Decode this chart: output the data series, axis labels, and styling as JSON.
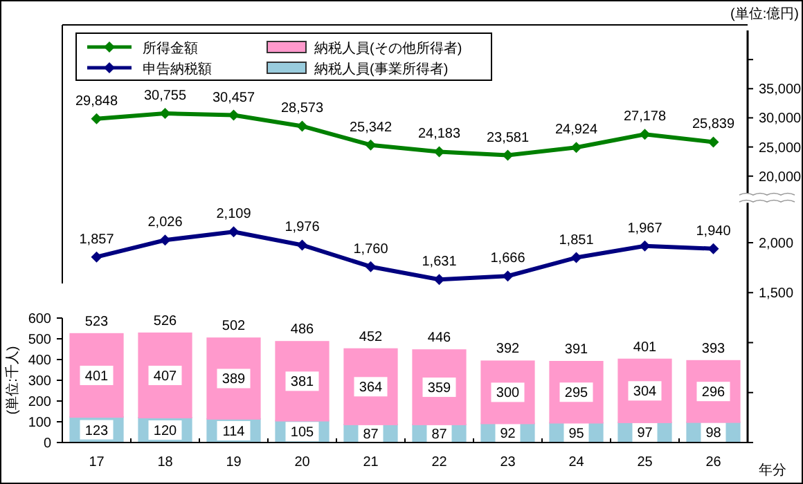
{
  "chart_data": [
    {
      "type": "line",
      "y2label": "(単位:億円)",
      "categories": [
        "17",
        "18",
        "19",
        "20",
        "21",
        "22",
        "23",
        "24",
        "25",
        "26"
      ],
      "tick_labels": "y",
      "series": [
        {
          "name": "所得金額",
          "color": "#008000",
          "axis": "y2",
          "values": [
            29848,
            30755,
            30457,
            28573,
            25342,
            24183,
            23581,
            24924,
            27178,
            25839
          ],
          "value_labels": [
            "29,848",
            "30,755",
            "30,457",
            "28,573",
            "25,342",
            "24,183",
            "23,581",
            "24,924",
            "27,178",
            "25,839"
          ]
        }
      ],
      "y2lim": [
        17000,
        45000
      ],
      "y2ticks": [
        {
          "value": 20000,
          "label": "20,000"
        },
        {
          "value": 25000,
          "label": "25,000"
        },
        {
          "value": 30000,
          "label": "30,000"
        },
        {
          "value": 35000,
          "label": "35,000"
        },
        {
          "value": 40000,
          "label": null
        }
      ],
      "marker": "diamond",
      "legend": "top left"
    },
    {
      "type": "line",
      "categories": [
        "17",
        "18",
        "19",
        "20",
        "21",
        "22",
        "23",
        "24",
        "25",
        "26"
      ],
      "tick_labels": "y",
      "series": [
        {
          "name": "申告納税額",
          "color": "#000080",
          "axis": "y2",
          "values": [
            1857,
            2026,
            2109,
            1976,
            1760,
            1631,
            1666,
            1851,
            1967,
            1940
          ],
          "value_labels": [
            "1,857",
            "2,026",
            "2,109",
            "1,976",
            "1,760",
            "1,631",
            "1,666",
            "1,851",
            "1,967",
            "1,940"
          ]
        }
      ],
      "y2lim": [
        0,
        2400
      ],
      "y2ticks": [
        {
          "value": 0,
          "label": null
        },
        {
          "value": 500,
          "label": null
        },
        {
          "value": 1000,
          "label": null
        },
        {
          "value": 1500,
          "label": "1,500"
        },
        {
          "value": 2000,
          "label": "2,000"
        }
      ],
      "marker": "diamond",
      "legend": "top left"
    },
    {
      "type": "bar",
      "stacked": true,
      "ylabel": "(単位:千人)",
      "xlabel": "年分",
      "categories": [
        "17",
        "18",
        "19",
        "20",
        "21",
        "22",
        "23",
        "24",
        "25",
        "26"
      ],
      "series": [
        {
          "name": "納税人員(事業所得者)",
          "color": "#99ccdd",
          "values": [
            123,
            120,
            114,
            105,
            87,
            87,
            92,
            95,
            97,
            98
          ]
        },
        {
          "name": "納税人員(その他所得者)",
          "color": "#ff99cc",
          "values": [
            401,
            407,
            389,
            381,
            364,
            359,
            300,
            295,
            304,
            296
          ]
        }
      ],
      "totals": [
        "523",
        "526",
        "502",
        "486",
        "452",
        "446",
        "392",
        "391",
        "401",
        "393"
      ],
      "ylim": [
        0,
        600
      ],
      "yticks": [
        0,
        100,
        200,
        300,
        400,
        500,
        600
      ],
      "data_labels": true,
      "legend": "top left"
    }
  ]
}
